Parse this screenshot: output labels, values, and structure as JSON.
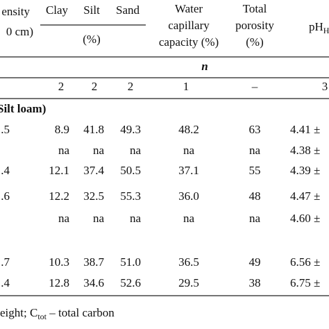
{
  "header": {
    "density": [
      "ensity",
      "0 cm)"
    ],
    "clay": "Clay",
    "silt": "Silt",
    "sand": "Sand",
    "unit": "(%)",
    "water": [
      "Water",
      "capillary",
      "capacity (%)"
    ],
    "porosity": [
      "Total",
      "porosity",
      "(%)"
    ],
    "ph": "pH",
    "ph_sub": "H"
  },
  "n_label": "n",
  "n_row": [
    "2",
    "2",
    "2",
    "1",
    "–",
    "3"
  ],
  "section": "Silt loam)",
  "rows": [
    {
      "density": ".5",
      "values": [
        "8.9",
        "41.8",
        "49.3",
        "48.2",
        "63",
        "4.41 ±"
      ]
    },
    {
      "values": [
        "na",
        "na",
        "na",
        "na",
        "na",
        "4.38 ±"
      ]
    },
    {
      "density": ".4",
      "values": [
        "12.1",
        "37.4",
        "50.5",
        "37.1",
        "55",
        "4.39 ±"
      ]
    },
    {
      "density": ".6",
      "values": [
        "12.2",
        "32.5",
        "55.3",
        "36.0",
        "48",
        "4.47 ±"
      ]
    },
    {
      "values": [
        "na",
        "na",
        "na",
        "na",
        "na",
        "4.60 ±"
      ]
    },
    {
      "density": ".7",
      "values": [
        "10.3",
        "38.7",
        "51.0",
        "36.5",
        "49",
        "6.56 ±"
      ]
    },
    {
      "density": ".4",
      "values": [
        "12.8",
        "34.6",
        "52.6",
        "29.5",
        "38",
        "6.75 ±"
      ]
    }
  ],
  "footnote": {
    "before": "eight; C",
    "sub": "tot",
    "after": " – total carbon"
  }
}
